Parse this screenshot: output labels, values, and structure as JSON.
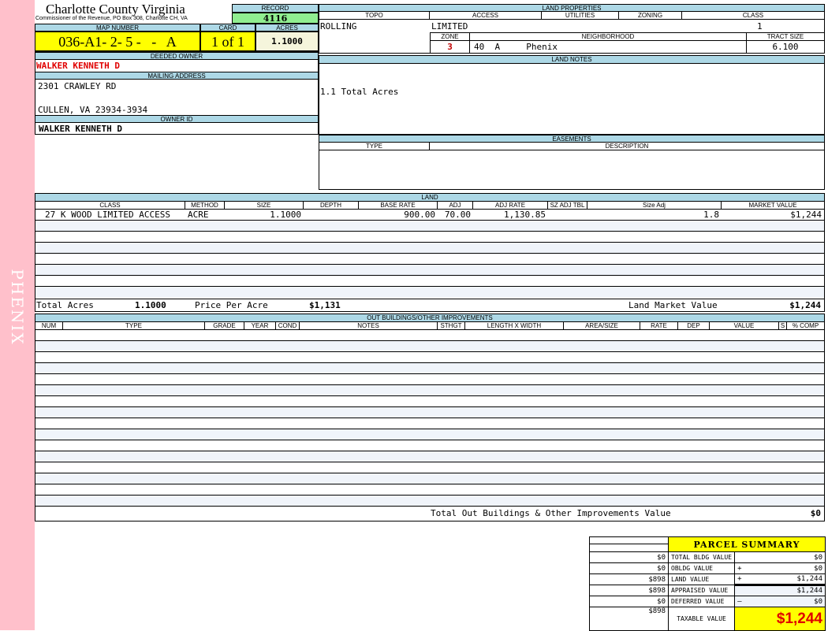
{
  "side_label": "PHENIX",
  "header": {
    "county": "Charlotte County Virginia",
    "office": "Commissioner of the Revenue, PO Box 308, Charlotte CH, VA",
    "record_label": "RECORD",
    "record": "4116"
  },
  "parcel": {
    "map_number_label": "MAP NUMBER",
    "map_number": "036-A1- 2- 5 -   -   A",
    "card_label": "CARD",
    "card": "1 of 1",
    "acres_label": "ACRES",
    "acres": "1.1000"
  },
  "owner": {
    "deeded_label": "DEEDED OWNER",
    "deeded": "WALKER KENNETH D",
    "mailing_label": "MAILING ADDRESS",
    "address1": "2301 CRAWLEY RD",
    "address2": "CULLEN, VA 23934-3934",
    "owner_id_label": "OWNER ID",
    "owner_id": "WALKER KENNETH D"
  },
  "land_properties": {
    "title": "LAND PROPERTIES",
    "topo_label": "TOPO",
    "access_label": "ACCESS",
    "utilities_label": "UTILITIES",
    "zoning_label": "ZONING",
    "class_label": "CLASS",
    "topo": "ROLLING",
    "access": "LIMITED",
    "class": "1",
    "zone_label": "ZONE",
    "neighborhood_label": "NEIGHBORHOOD",
    "tract_label": "TRACT SIZE",
    "zone": "3",
    "neighborhood": "40  A     Phenix",
    "tract": "6.100"
  },
  "land_notes": {
    "title": "LAND NOTES",
    "text": "1.1 Total Acres"
  },
  "easements": {
    "title": "EASEMENTS",
    "type_label": "TYPE",
    "description_label": "DESCRIPTION"
  },
  "land": {
    "title": "LAND",
    "columns": [
      "CLASS",
      "METHOD",
      "SIZE",
      "DEPTH",
      "BASE RATE",
      "ADJ",
      "ADJ RATE",
      "SZ ADJ TBL",
      "Size Adj",
      "MARKET VALUE"
    ],
    "rows": [
      [
        "27 K WOOD LIMITED ACCESS",
        "ACRE",
        "1.1000",
        "",
        "900.00",
        "70.00",
        "1,130.85",
        "",
        "1.8",
        "$1,244"
      ]
    ],
    "total_acres_label": "Total Acres",
    "total_acres": "1.1000",
    "price_per_acre_label": "Price Per Acre",
    "price_per_acre": "$1,131",
    "market_value_label": "Land Market Value",
    "market_value": "$1,244"
  },
  "outbuildings": {
    "title": "OUT BUILDINGS/OTHER IMPROVEMENTS",
    "columns": [
      "NUM",
      "TYPE",
      "GRADE",
      "YEAR",
      "COND",
      "NOTES",
      "STHGT",
      "LENGTH X WIDTH",
      "AREA/SIZE",
      "RATE",
      "DEP",
      "VALUE",
      "S",
      "% COMP"
    ],
    "total_label": "Total Out Buildings & Other Improvements Value",
    "total": "$0"
  },
  "summary": {
    "title": "PARCEL SUMMARY",
    "rows": [
      {
        "prev": "$0",
        "label": "TOTAL BLDG VALUE",
        "op": "",
        "value": "$0"
      },
      {
        "prev": "$0",
        "label": "OBLDG VALUE",
        "op": "+",
        "value": "$0"
      },
      {
        "prev": "$898",
        "label": "LAND VALUE",
        "op": "+",
        "value": "$1,244"
      },
      {
        "prev": "$898",
        "label": "APPRAISED VALUE",
        "op": "",
        "value": "$1,244"
      },
      {
        "prev": "$0",
        "label": "DEFERRED VALUE",
        "op": "–",
        "value": "$0"
      }
    ],
    "taxable_prev": "$898",
    "taxable_label": "TAXABLE VALUE",
    "taxable": "$1,244"
  },
  "colors": {
    "header_blue": "#add8e6",
    "highlight_yellow": "#ffff00",
    "record_green": "#90ee90",
    "side_pink": "#ffc0cb",
    "owner_red": "#e00000"
  }
}
